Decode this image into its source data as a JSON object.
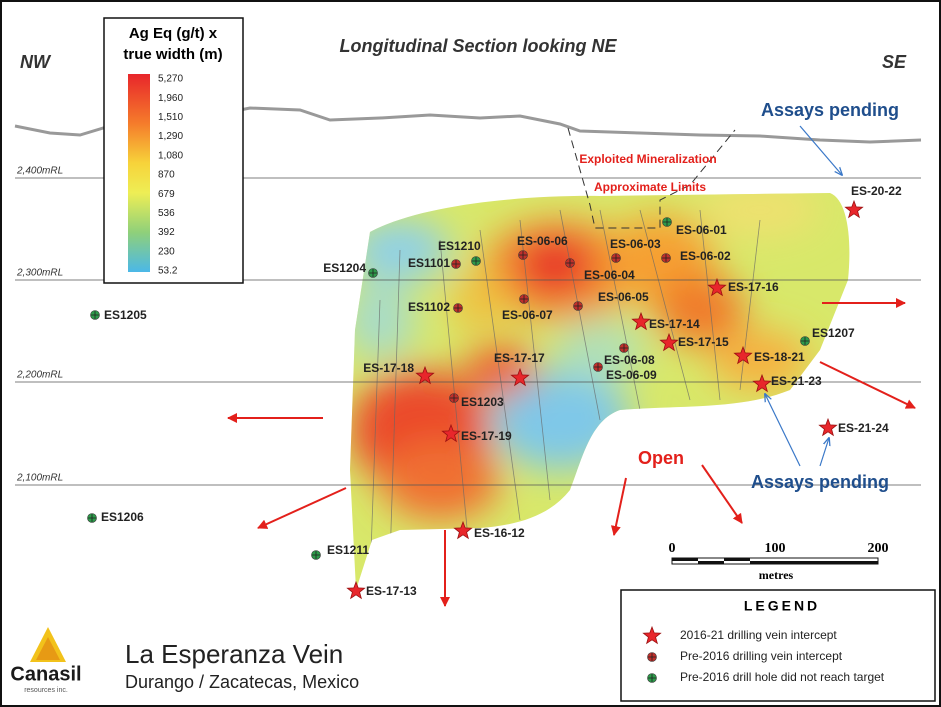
{
  "title": "Longitudinal Section looking NE",
  "directions": [
    "NW",
    "SE"
  ],
  "color_scale": {
    "title": [
      "Ag Eq (g/t) x",
      "true width (m)"
    ],
    "labels": [
      "5,270",
      "1,960",
      "1,510",
      "1,290",
      "1,080",
      "870",
      "679",
      "536",
      "392",
      "230",
      "53.2"
    ]
  },
  "elevations": [
    "2,400mRL",
    "2,300mRL",
    "2,200mRL",
    "2,100mRL"
  ],
  "annotations": {
    "exploited": "Exploited Mineralization",
    "limits": "Approximate Limits",
    "pending_top": "Assays pending",
    "pending_bottom": "Assays pending",
    "open": "Open"
  },
  "holes": [
    "ES-20-22",
    "ES-17-16",
    "ES-17-14",
    "ES-17-15",
    "ES-18-21",
    "ES-21-23",
    "ES-21-24",
    "ES-17-18",
    "ES-17-17",
    "ES-17-19",
    "ES-16-12",
    "ES-17-13",
    "ES-06-06",
    "ES-06-03",
    "ES-06-02",
    "ES-06-04",
    "ES1101",
    "ES1102",
    "ES-06-07",
    "ES-06-05",
    "ES-06-08",
    "ES-06-09",
    "ES1203",
    "ES-06-01",
    "ES1210",
    "ES1204",
    "ES1205",
    "ES1207",
    "ES1206",
    "ES1211"
  ],
  "scale_bar": {
    "ticks": [
      "0",
      "100",
      "200"
    ],
    "unit": "metres"
  },
  "legend": {
    "title": "LEGEND",
    "items": [
      "2016-21 drilling vein intercept",
      "Pre-2016 drilling vein intercept",
      "Pre-2016 drill hole did not reach target"
    ]
  },
  "footer": {
    "logo": "Canasil",
    "logo_sub": "resources inc.",
    "title": "La Esperanza Vein",
    "subtitle": "Durango / Zacatecas, Mexico"
  }
}
